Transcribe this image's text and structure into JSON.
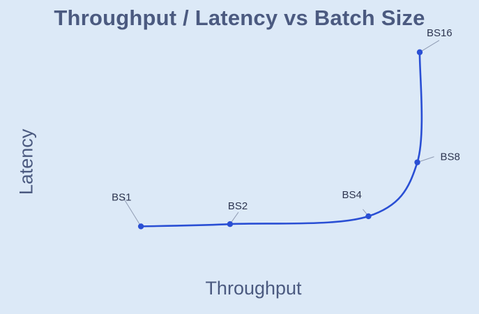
{
  "chart_data": {
    "type": "line",
    "title": "Throughput / Latency vs Batch Size",
    "xlabel": "Throughput",
    "ylabel": "Latency",
    "grid": false,
    "axes_visible": false,
    "line_color": "#2a4fd4",
    "label_color": "#2d3550",
    "leader_color": "#8f9bb3",
    "xlim": [
      0,
      100
    ],
    "ylim": [
      0,
      100
    ],
    "points": [
      {
        "label": "BS1",
        "x": 23.6,
        "y": 9.5
      },
      {
        "label": "BS2",
        "x": 42.2,
        "y": 10.5
      },
      {
        "label": "BS4",
        "x": 71.1,
        "y": 14.0
      },
      {
        "label": "BS8",
        "x": 81.3,
        "y": 38.0
      },
      {
        "label": "BS16",
        "x": 81.8,
        "y": 87.0
      }
    ]
  }
}
